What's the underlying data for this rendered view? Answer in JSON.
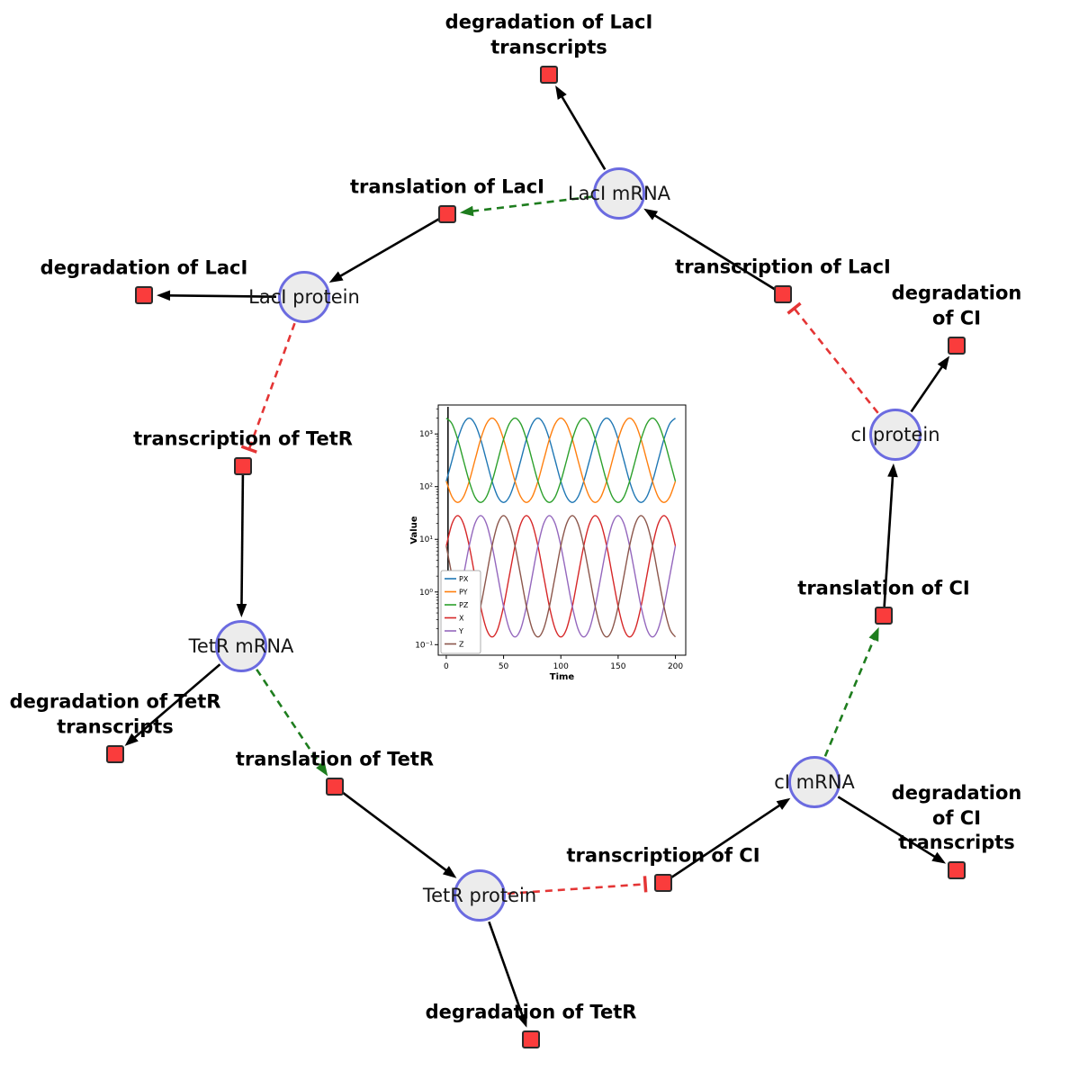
{
  "network": {
    "species": [
      {
        "id": "LacI_mRNA",
        "label": "LacI mRNA"
      },
      {
        "id": "LacI_protein",
        "label": "LacI protein"
      },
      {
        "id": "cI_protein",
        "label": "cI protein"
      },
      {
        "id": "TetR_mRNA",
        "label": "TetR mRNA"
      },
      {
        "id": "cI_mRNA",
        "label": "cI mRNA"
      },
      {
        "id": "TetR_protein",
        "label": "TetR protein"
      }
    ],
    "reactions": [
      {
        "id": "deg_LacI_tx",
        "label": "degradation of LacI\ntranscripts"
      },
      {
        "id": "transl_LacI",
        "label": "translation of LacI"
      },
      {
        "id": "deg_LacI",
        "label": "degradation of LacI"
      },
      {
        "id": "tx_LacI",
        "label": "transcription of LacI"
      },
      {
        "id": "deg_cI",
        "label": "degradation of CI"
      },
      {
        "id": "tx_TetR",
        "label": "transcription of TetR"
      },
      {
        "id": "deg_TetR_tx",
        "label": "degradation of TetR\ntranscripts"
      },
      {
        "id": "transl_TetR",
        "label": "translation of TetR"
      },
      {
        "id": "transl_cI",
        "label": "translation of CI"
      },
      {
        "id": "tx_cI",
        "label": "transcription of CI"
      },
      {
        "id": "deg_cI_tx",
        "label": "degradation of CI\ntranscripts"
      },
      {
        "id": "deg_TetR",
        "label": "degradation of TetR"
      }
    ],
    "edges": [
      {
        "from": "LacI_mRNA",
        "to": "deg_LacI_tx",
        "type": "reactant"
      },
      {
        "from": "LacI_mRNA",
        "to": "transl_LacI",
        "type": "modifier"
      },
      {
        "from": "transl_LacI",
        "to": "LacI_protein",
        "type": "product"
      },
      {
        "from": "LacI_protein",
        "to": "deg_LacI",
        "type": "reactant"
      },
      {
        "from": "LacI_protein",
        "to": "tx_TetR",
        "type": "inhibitor"
      },
      {
        "from": "tx_TetR",
        "to": "TetR_mRNA",
        "type": "product"
      },
      {
        "from": "TetR_mRNA",
        "to": "deg_TetR_tx",
        "type": "reactant"
      },
      {
        "from": "TetR_mRNA",
        "to": "transl_TetR",
        "type": "modifier"
      },
      {
        "from": "transl_TetR",
        "to": "TetR_protein",
        "type": "product"
      },
      {
        "from": "TetR_protein",
        "to": "deg_TetR",
        "type": "reactant"
      },
      {
        "from": "TetR_protein",
        "to": "tx_cI",
        "type": "inhibitor"
      },
      {
        "from": "tx_cI",
        "to": "cI_mRNA",
        "type": "product"
      },
      {
        "from": "cI_mRNA",
        "to": "deg_cI_tx",
        "type": "reactant"
      },
      {
        "from": "cI_mRNA",
        "to": "transl_cI",
        "type": "modifier"
      },
      {
        "from": "transl_cI",
        "to": "cI_protein",
        "type": "product"
      },
      {
        "from": "cI_protein",
        "to": "deg_cI",
        "type": "reactant"
      },
      {
        "from": "cI_protein",
        "to": "tx_LacI",
        "type": "inhibitor"
      },
      {
        "from": "tx_LacI",
        "to": "LacI_mRNA",
        "type": "product"
      }
    ],
    "colors": {
      "species_fill": "#ececec",
      "species_border": "#6b6be0",
      "reaction_fill": "#fa3c3c",
      "reaction_border": "#2b2b2b",
      "edge_black": "#000000",
      "edge_modifier_green": "#1e7d1e",
      "edge_inhibitor_red": "#e43535"
    }
  },
  "chart_data": {
    "type": "line",
    "title": "",
    "xlabel": "Time",
    "ylabel": "Value",
    "x_ticks": [
      0,
      50,
      100,
      150,
      200
    ],
    "y_scale": "log",
    "y_tick_labels": [
      "10⁻¹",
      "10⁰",
      "10¹",
      "10²",
      "10³"
    ],
    "xlim": [
      -7,
      209
    ],
    "ylim_log10": [
      -1.2,
      3.55
    ],
    "legend_position": "lower left",
    "x": [
      0,
      5,
      10,
      15,
      20,
      25,
      30,
      35,
      40,
      45,
      50,
      55,
      60,
      65,
      70,
      75,
      80,
      85,
      90,
      95,
      100,
      105,
      110,
      115,
      120,
      125,
      130,
      135,
      140,
      145,
      150,
      155,
      160,
      165,
      170,
      175,
      180,
      185,
      190,
      195,
      200
    ],
    "series": [
      {
        "name": "PX",
        "color": "#1f77b4",
        "values": [
          126,
          316,
          794,
          1560,
          1995,
          1560,
          794,
          316,
          126,
          64,
          50,
          64,
          126,
          316,
          794,
          1560,
          1995,
          1560,
          794,
          316,
          126,
          64,
          50,
          64,
          126,
          316,
          794,
          1560,
          1995,
          1560,
          794,
          316,
          126,
          64,
          50,
          64,
          126,
          316,
          794,
          1560,
          1995
        ]
      },
      {
        "name": "PY",
        "color": "#ff7f0e",
        "values": [
          126,
          64,
          50,
          64,
          126,
          316,
          794,
          1560,
          1995,
          1560,
          794,
          316,
          126,
          64,
          50,
          64,
          126,
          316,
          794,
          1560,
          1995,
          1560,
          794,
          316,
          126,
          64,
          50,
          64,
          126,
          316,
          794,
          1560,
          1995,
          1560,
          794,
          316,
          126,
          64,
          50,
          64,
          126
        ]
      },
      {
        "name": "PZ",
        "color": "#2ca02c",
        "values": [
          1995,
          1560,
          794,
          316,
          126,
          64,
          50,
          64,
          126,
          316,
          794,
          1560,
          1995,
          1560,
          794,
          316,
          126,
          64,
          50,
          64,
          126,
          316,
          794,
          1560,
          1995,
          1560,
          794,
          316,
          126,
          64,
          50,
          64,
          126,
          316,
          794,
          1560,
          1995,
          1560,
          794,
          316,
          126
        ]
      },
      {
        "name": "X",
        "color": "#d62728",
        "values": [
          7.5,
          19.8,
          28.2,
          19.8,
          7.5,
          2,
          0.53,
          0.2,
          0.14,
          0.2,
          0.53,
          2,
          7.5,
          19.8,
          28.2,
          19.8,
          7.5,
          2,
          0.53,
          0.2,
          0.14,
          0.2,
          0.53,
          2,
          7.5,
          19.8,
          28.2,
          19.8,
          7.5,
          2,
          0.53,
          0.2,
          0.14,
          0.2,
          0.53,
          2,
          7.5,
          19.8,
          28.2,
          19.8,
          7.5
        ]
      },
      {
        "name": "Y",
        "color": "#9467bd",
        "values": [
          0.14,
          0.2,
          0.53,
          2,
          7.5,
          19.8,
          28.2,
          19.8,
          7.5,
          2,
          0.53,
          0.2,
          0.14,
          0.2,
          0.53,
          2,
          7.5,
          19.8,
          28.2,
          19.8,
          7.5,
          2,
          0.53,
          0.2,
          0.14,
          0.2,
          0.53,
          2,
          7.5,
          19.8,
          28.2,
          19.8,
          7.5,
          2,
          0.53,
          0.2,
          0.14,
          0.2,
          0.53,
          2,
          7.5
        ]
      },
      {
        "name": "Z",
        "color": "#8c564b",
        "values": [
          7.5,
          2,
          0.53,
          0.2,
          0.14,
          0.2,
          0.53,
          2,
          7.5,
          19.8,
          28.2,
          19.8,
          7.5,
          2,
          0.53,
          0.2,
          0.14,
          0.2,
          0.53,
          2,
          7.5,
          19.8,
          28.2,
          19.8,
          7.5,
          2,
          0.53,
          0.2,
          0.14,
          0.2,
          0.53,
          2,
          7.5,
          19.8,
          28.2,
          19.8,
          7.5,
          2,
          0.53,
          0.2,
          0.14
        ]
      }
    ],
    "annotations": [
      {
        "type": "initial-transient-vline",
        "x": 1.5
      }
    ]
  }
}
